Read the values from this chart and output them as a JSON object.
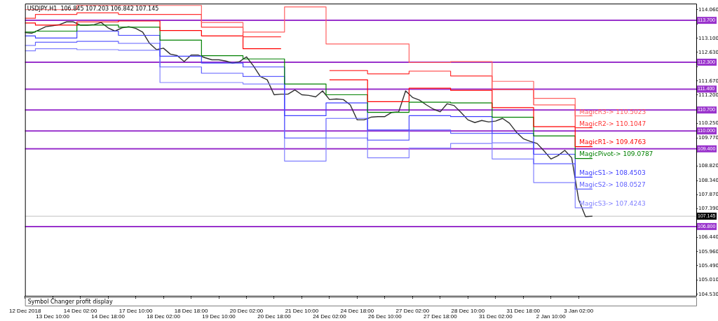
{
  "chart_data": {
    "type": "line",
    "title": "USDJPY,H1  106.845 107.203 106.842 107.145",
    "categories": [
      "12 Dec 2018",
      null,
      null,
      null,
      "13 Dec 10:00",
      null,
      null,
      null,
      "14 Dec 02:00",
      null,
      null,
      null,
      "14 Dec 18:00",
      null,
      null,
      null,
      "17 Dec 10:00",
      null,
      null,
      null,
      "18 Dec 02:00",
      null,
      null,
      null,
      "18 Dec 18:00",
      null,
      null,
      null,
      "19 Dec 10:00",
      null,
      null,
      null,
      "20 Dec 02:00",
      null,
      null,
      null,
      "20 Dec 18:00",
      null,
      null,
      null,
      "21 Dec 10:00",
      null,
      null,
      null,
      "24 Dec 02:00",
      null,
      null,
      null,
      "24 Dec 18:00",
      null,
      null,
      null,
      "26 Dec 10:00",
      null,
      null,
      null,
      "27 Dec 02:00",
      null,
      null,
      null,
      "27 Dec 18:00",
      null,
      null,
      null,
      "28 Dec 10:00",
      null,
      null,
      null,
      "31 Dec 02:00",
      null,
      null,
      null,
      "31 Dec 18:00",
      null,
      null,
      null,
      "2 Jan 10:00",
      null,
      null,
      null,
      "3 Jan 02:00",
      null,
      null,
      null,
      null,
      null,
      null,
      null,
      null,
      null,
      null,
      null,
      null,
      null,
      null,
      null,
      null,
      null
    ],
    "series": [
      {
        "type": "step",
        "color": "#ff6060",
        "values": [
          114.06,
          114.06,
          114.06,
          114.06,
          114.06,
          114.06,
          114.06,
          114.06,
          114.2,
          114.2,
          114.2,
          114.2,
          114.2,
          114.2,
          114.2,
          114.2,
          114.2,
          114.2,
          114.2,
          114.2,
          114.2,
          114.2,
          114.2,
          114.2,
          114.2,
          114.2,
          113.63,
          113.63,
          113.63,
          113.63,
          113.63,
          113.63,
          113.31,
          113.31,
          113.31,
          113.31,
          113.31,
          113.31,
          114.15,
          114.15,
          114.15,
          114.15,
          114.15,
          114.15,
          112.91,
          112.91,
          112.91,
          112.91,
          112.91,
          112.91,
          112.91,
          112.91,
          112.91,
          112.91,
          112.91,
          112.91,
          112.29,
          112.29,
          112.29,
          112.29,
          112.29,
          112.29,
          112.32,
          112.32,
          112.32,
          112.32,
          112.32,
          112.32,
          111.66,
          111.66,
          111.66,
          111.66,
          111.66,
          111.66,
          111.09,
          111.09,
          111.09,
          111.09,
          111.09,
          111.09,
          110.5023,
          110.5023,
          110.5023,
          null,
          null,
          null,
          null,
          null,
          null,
          null,
          null,
          null,
          null,
          null,
          null,
          null,
          null,
          null
        ]
      },
      {
        "type": "step",
        "color": "#ff3030",
        "values": [
          113.77,
          113.77,
          113.9,
          113.9,
          113.9,
          113.9,
          113.9,
          113.9,
          113.95,
          113.95,
          113.95,
          113.95,
          113.95,
          113.95,
          113.9,
          113.9,
          113.9,
          113.9,
          113.9,
          113.9,
          113.9,
          113.9,
          113.9,
          113.9,
          113.9,
          113.9,
          113.47,
          113.47,
          113.47,
          113.47,
          113.47,
          113.47,
          113.15,
          113.15,
          113.15,
          113.15,
          113.15,
          113.15,
          null,
          null,
          null,
          null,
          null,
          null,
          112.02,
          112.02,
          112.02,
          112.02,
          112.02,
          112.02,
          111.91,
          111.91,
          111.91,
          111.91,
          111.91,
          111.91,
          112.0,
          112.0,
          112.0,
          112.0,
          112.0,
          112.0,
          111.84,
          111.84,
          111.84,
          111.84,
          111.84,
          111.84,
          111.39,
          111.39,
          111.39,
          111.39,
          111.39,
          111.39,
          110.87,
          110.87,
          110.87,
          110.87,
          110.87,
          110.87,
          110.1047,
          110.1047,
          110.1047,
          null,
          null,
          null,
          null,
          null,
          null,
          null,
          null,
          null,
          null,
          null,
          null,
          null,
          null,
          null
        ]
      },
      {
        "type": "step",
        "color": "#ff0000",
        "values": [
          113.61,
          113.61,
          113.54,
          113.54,
          113.54,
          113.54,
          113.54,
          113.54,
          113.65,
          113.65,
          113.65,
          113.65,
          113.65,
          113.65,
          113.68,
          113.68,
          113.68,
          113.68,
          113.68,
          113.68,
          113.36,
          113.36,
          113.36,
          113.36,
          113.36,
          113.36,
          113.18,
          113.18,
          113.18,
          113.18,
          113.18,
          113.18,
          112.75,
          112.75,
          112.75,
          112.75,
          112.75,
          112.75,
          null,
          null,
          null,
          null,
          null,
          null,
          111.71,
          111.71,
          111.71,
          111.71,
          111.71,
          111.71,
          110.98,
          110.98,
          110.98,
          110.98,
          110.98,
          110.98,
          111.43,
          111.43,
          111.43,
          111.43,
          111.43,
          111.43,
          111.36,
          111.36,
          111.36,
          111.36,
          111.36,
          111.36,
          110.78,
          110.78,
          110.78,
          110.78,
          110.78,
          110.78,
          110.14,
          110.14,
          110.14,
          110.14,
          110.14,
          110.14,
          109.4763,
          109.4763,
          109.4763,
          null,
          null,
          null,
          null,
          null,
          null,
          null,
          null,
          null,
          null,
          null,
          null,
          null,
          null,
          null
        ]
      },
      {
        "type": "step",
        "color": "#008000",
        "values": [
          113.31,
          113.31,
          113.34,
          113.34,
          113.34,
          113.34,
          113.34,
          113.34,
          113.54,
          113.54,
          113.54,
          113.54,
          113.54,
          113.54,
          113.47,
          113.47,
          113.47,
          113.47,
          113.47,
          113.47,
          113.04,
          113.04,
          113.04,
          113.04,
          113.04,
          113.04,
          112.52,
          112.52,
          112.52,
          112.52,
          112.52,
          112.52,
          112.41,
          112.41,
          112.41,
          112.41,
          112.41,
          112.41,
          111.57,
          111.57,
          111.57,
          111.57,
          111.57,
          111.57,
          111.21,
          111.21,
          111.21,
          111.21,
          111.21,
          111.21,
          110.62,
          110.62,
          110.62,
          110.62,
          110.62,
          110.62,
          110.96,
          110.96,
          110.96,
          110.96,
          110.96,
          110.96,
          110.94,
          110.94,
          110.94,
          110.94,
          110.94,
          110.94,
          110.46,
          110.46,
          110.46,
          110.46,
          110.46,
          110.46,
          109.83,
          109.83,
          109.83,
          109.83,
          109.83,
          109.83,
          109.0787,
          109.0787,
          109.0787,
          null,
          null,
          null,
          null,
          null,
          null,
          null,
          null,
          null,
          null,
          null,
          null,
          null,
          null,
          null
        ]
      },
      {
        "type": "step",
        "color": "#4040ff",
        "values": [
          113.18,
          113.18,
          113.11,
          113.11,
          113.11,
          113.11,
          113.11,
          113.11,
          113.34,
          113.34,
          113.34,
          113.34,
          113.34,
          113.34,
          113.2,
          113.2,
          113.2,
          113.2,
          113.2,
          113.2,
          112.5,
          112.5,
          112.5,
          112.5,
          112.5,
          112.5,
          112.27,
          112.27,
          112.27,
          112.27,
          112.27,
          112.27,
          112.14,
          112.14,
          112.14,
          112.14,
          112.14,
          112.14,
          110.51,
          110.51,
          110.51,
          110.51,
          110.51,
          110.51,
          110.94,
          110.94,
          110.94,
          110.94,
          110.94,
          110.94,
          110.03,
          110.03,
          110.03,
          110.03,
          110.03,
          110.03,
          110.51,
          110.51,
          110.51,
          110.51,
          110.51,
          110.51,
          110.48,
          110.48,
          110.48,
          110.48,
          110.48,
          110.48,
          109.92,
          109.92,
          109.92,
          109.92,
          109.92,
          109.92,
          109.22,
          109.22,
          109.22,
          109.22,
          109.22,
          109.22,
          108.4503,
          108.4503,
          108.4503,
          null,
          null,
          null,
          null,
          null,
          null,
          null,
          null,
          null,
          null,
          null,
          null,
          null,
          null,
          null
        ]
      },
      {
        "type": "step",
        "color": "#6060ff",
        "values": [
          112.86,
          112.86,
          112.97,
          112.97,
          112.97,
          112.97,
          112.97,
          112.97,
          113.0,
          113.0,
          113.0,
          113.0,
          113.0,
          113.0,
          112.93,
          112.93,
          112.93,
          112.93,
          112.93,
          112.93,
          112.14,
          112.14,
          112.14,
          112.14,
          112.14,
          112.14,
          111.93,
          111.93,
          111.93,
          111.93,
          111.93,
          111.93,
          111.82,
          111.82,
          111.82,
          111.82,
          111.82,
          111.82,
          109.76,
          109.76,
          109.76,
          109.76,
          109.76,
          109.76,
          110.42,
          110.42,
          110.42,
          110.42,
          110.42,
          110.42,
          109.69,
          109.69,
          109.69,
          109.69,
          109.69,
          109.69,
          110.03,
          110.03,
          110.03,
          110.03,
          110.03,
          110.03,
          109.92,
          109.92,
          109.92,
          109.92,
          109.92,
          109.92,
          109.6,
          109.6,
          109.6,
          109.6,
          109.6,
          109.6,
          108.9,
          108.9,
          108.9,
          108.9,
          108.9,
          108.9,
          108.0527,
          108.0527,
          108.0527,
          null,
          null,
          null,
          null,
          null,
          null,
          null,
          null,
          null,
          null,
          null,
          null,
          null,
          null,
          null
        ]
      },
      {
        "type": "step",
        "color": "#8080ff",
        "values": [
          112.68,
          112.68,
          112.75,
          112.75,
          112.75,
          112.75,
          112.75,
          112.75,
          112.72,
          112.72,
          112.72,
          112.72,
          112.72,
          112.72,
          112.7,
          112.7,
          112.7,
          112.7,
          112.7,
          112.7,
          111.62,
          111.62,
          111.62,
          111.62,
          111.62,
          111.62,
          111.62,
          111.62,
          111.62,
          111.62,
          111.62,
          111.62,
          111.57,
          111.57,
          111.57,
          111.57,
          111.57,
          111.57,
          108.99,
          108.99,
          108.99,
          108.99,
          108.99,
          108.99,
          109.76,
          109.76,
          109.76,
          109.76,
          109.76,
          109.76,
          109.1,
          109.1,
          109.1,
          109.1,
          109.1,
          109.1,
          109.42,
          109.42,
          109.42,
          109.42,
          109.42,
          109.42,
          109.58,
          109.58,
          109.58,
          109.58,
          109.58,
          109.58,
          109.06,
          109.06,
          109.06,
          109.06,
          109.06,
          109.06,
          108.27,
          108.27,
          108.27,
          108.27,
          108.27,
          108.27,
          107.4243,
          107.4243,
          107.4243,
          null,
          null,
          null,
          null,
          null,
          null,
          null,
          null,
          null,
          null,
          null,
          null,
          null,
          null,
          null
        ]
      },
      {
        "color": "#303030",
        "values": [
          113.29,
          113.27,
          113.38,
          113.49,
          113.52,
          113.56,
          113.65,
          113.65,
          113.54,
          113.54,
          113.56,
          113.63,
          113.45,
          113.34,
          113.45,
          113.49,
          113.43,
          113.31,
          112.93,
          112.72,
          112.77,
          112.57,
          112.52,
          112.32,
          112.54,
          112.54,
          112.45,
          112.38,
          112.38,
          112.34,
          112.27,
          112.32,
          112.48,
          112.18,
          111.82,
          111.71,
          111.21,
          111.23,
          111.23,
          111.37,
          111.21,
          111.19,
          111.14,
          111.34,
          111.05,
          111.07,
          111.05,
          110.87,
          110.37,
          110.37,
          110.46,
          110.48,
          110.48,
          110.62,
          110.64,
          111.34,
          111.12,
          111.03,
          110.87,
          110.73,
          110.64,
          110.91,
          110.85,
          110.62,
          110.37,
          110.28,
          110.35,
          110.3,
          110.33,
          110.42,
          110.26,
          109.96,
          109.74,
          109.65,
          109.58,
          109.33,
          109.06,
          109.17,
          109.35,
          109.1,
          107.7,
          107.13,
          107.145,
          null,
          null,
          null,
          null,
          null,
          null,
          null,
          null,
          null,
          null,
          null,
          null,
          null,
          null,
          null
        ]
      }
    ],
    "ylim": [
      104.48,
      114.26
    ],
    "yticks": [
      {
        "value": 104.53,
        "label": "104.530"
      },
      {
        "value": 105.01,
        "label": "105.010"
      },
      {
        "value": 105.49,
        "label": "105.490"
      },
      {
        "value": 105.96,
        "label": "105.960"
      },
      {
        "value": 106.44,
        "label": "106.440"
      },
      {
        "value": 106.91,
        "label": null
      },
      {
        "value": 107.39,
        "label": "107.390"
      },
      {
        "value": 107.87,
        "label": "107.870"
      },
      {
        "value": 108.34,
        "label": "108.340"
      },
      {
        "value": 108.82,
        "label": "108.820"
      },
      {
        "value": 109.29,
        "label": null
      },
      {
        "value": 109.77,
        "label": "109.770"
      },
      {
        "value": 110.25,
        "label": "110.250"
      },
      {
        "value": 110.72,
        "label": null
      },
      {
        "value": 111.2,
        "label": "111.200"
      },
      {
        "value": 111.67,
        "label": "111.670"
      },
      {
        "value": 112.15,
        "label": null
      },
      {
        "value": 112.63,
        "label": "112.630"
      },
      {
        "value": 113.1,
        "label": "113.100"
      },
      {
        "value": 113.58,
        "label": null
      },
      {
        "value": 114.06,
        "label": "114.060"
      }
    ],
    "ref_lines": [
      {
        "axis": "y",
        "value": 113.7,
        "label": "113.700",
        "color": "#9932cc"
      },
      {
        "axis": "y",
        "value": 112.3,
        "label": "112.300",
        "color": "#9932cc"
      },
      {
        "axis": "y",
        "value": 111.4,
        "label": "111.400",
        "color": "#9932cc"
      },
      {
        "axis": "y",
        "value": 110.7,
        "label": "110.700",
        "color": "#9932cc"
      },
      {
        "axis": "y",
        "value": 110.0,
        "label": "110.000",
        "color": "#9932cc"
      },
      {
        "axis": "y",
        "value": 109.4,
        "label": "109.400",
        "color": "#9932cc"
      },
      {
        "axis": "y",
        "value": 106.8,
        "label": "106.800",
        "color": "#9932cc"
      },
      {
        "axis": "y",
        "value": 107.145,
        "label": "107.145",
        "color": "#c0c0c0"
      }
    ],
    "annotations": [
      {
        "text": "MagicR3-> 110.5023",
        "x": "3 Jan 02:00",
        "y": 110.5023
      },
      {
        "text": "MagicR2-> 110.1047",
        "x": "3 Jan 02:00",
        "y": 110.1047
      },
      {
        "text": "MagicR1-> 109.4763",
        "x": "3 Jan 02:00",
        "y": 109.4763
      },
      {
        "text": "MagicPivot-> 109.0787",
        "x": "3 Jan 02:00",
        "y": 109.0787
      },
      {
        "text": "MagicS1-> 108.4503",
        "x": "3 Jan 02:00",
        "y": 108.4503
      },
      {
        "text": "MagicS2-> 108.0527",
        "x": "3 Jan 02:00",
        "y": 108.0527
      },
      {
        "text": "MagicS3-> 107.4243",
        "x": "3 Jan 02:00",
        "y": 107.4243
      },
      "Symbol Changer profit display"
    ]
  }
}
